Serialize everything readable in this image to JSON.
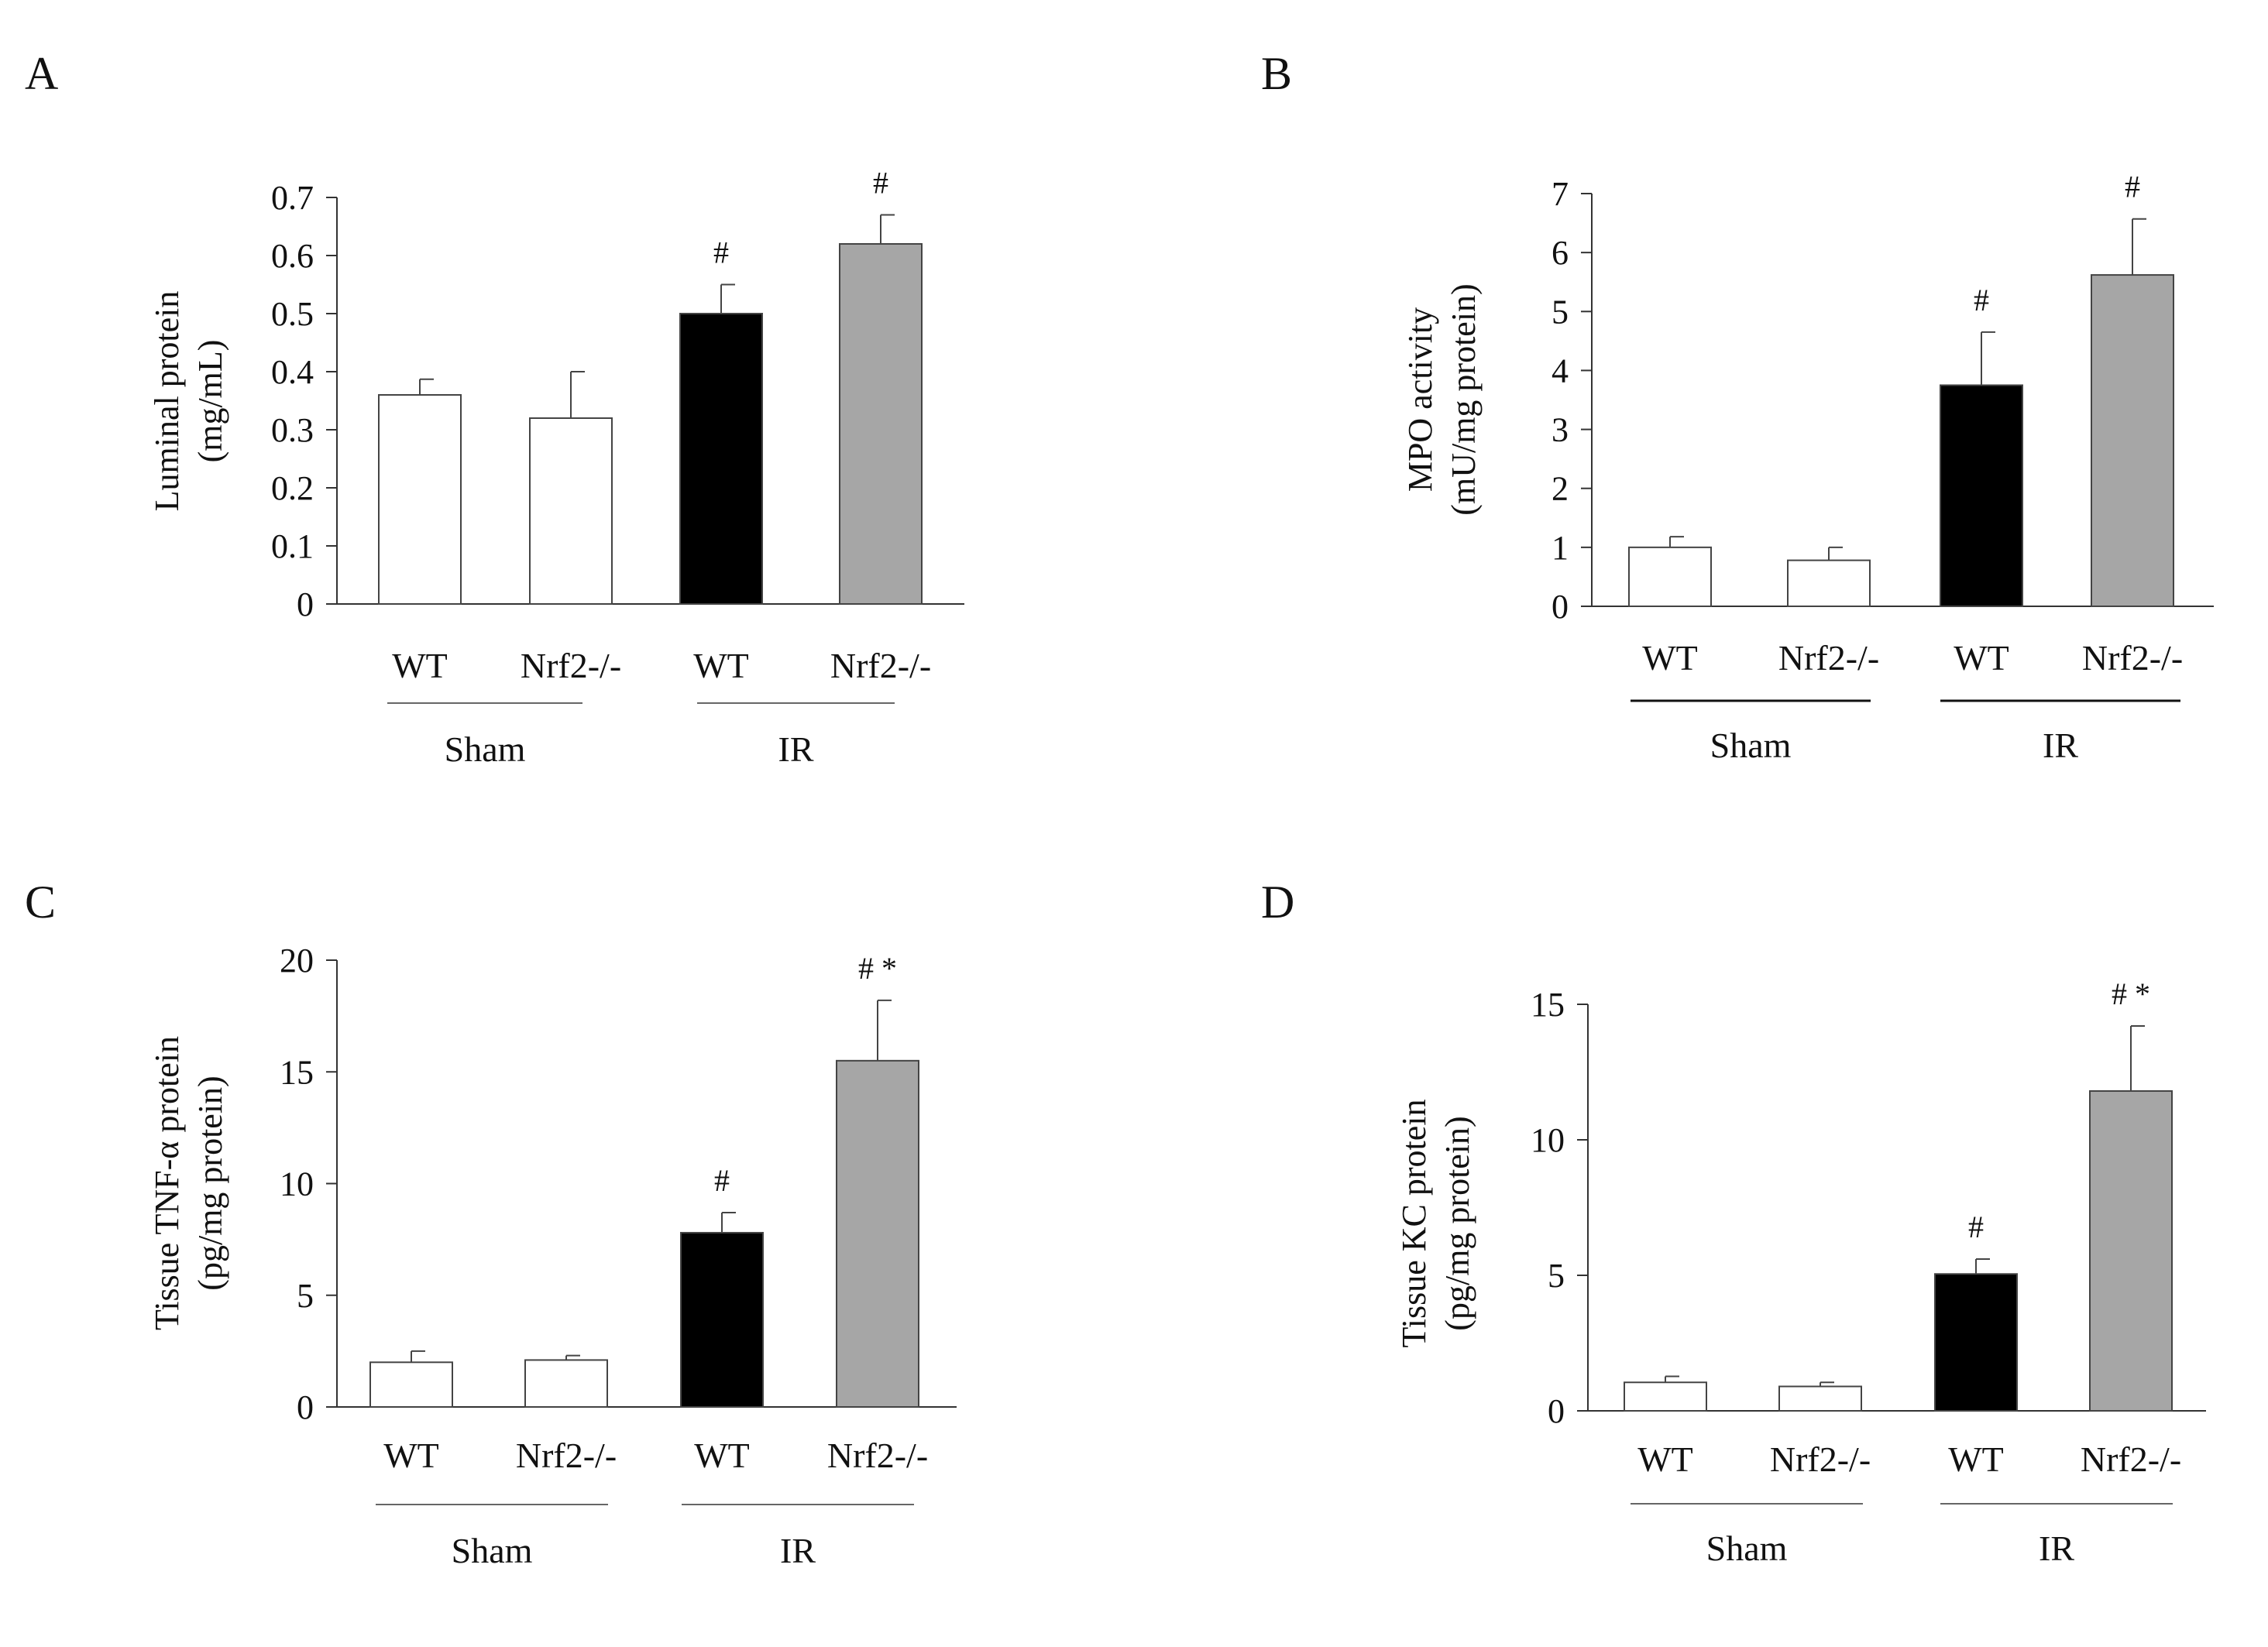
{
  "chart_data": [
    {
      "panel": "A",
      "type": "bar",
      "categories": [
        "WT",
        "Nrf2-/-",
        "WT",
        "Nrf2-/-"
      ],
      "groups": [
        {
          "label": "Sham",
          "categories": [
            0,
            1
          ]
        },
        {
          "label": "IR",
          "categories": [
            2,
            3
          ]
        }
      ],
      "values": [
        0.36,
        0.32,
        0.5,
        0.62
      ],
      "errors": [
        0.027,
        0.08,
        0.05,
        0.05
      ],
      "annotations": [
        "",
        "",
        "#",
        "#"
      ],
      "bar_colors": [
        "#ffffff",
        "#ffffff",
        "#000000",
        "#a6a6a6"
      ],
      "ylabel": [
        "Luminal protein",
        "(mg/mL)"
      ],
      "ylim": [
        0,
        0.7
      ],
      "yticks": [
        0,
        0.1,
        0.2,
        0.3,
        0.4,
        0.5,
        0.6,
        0.7
      ],
      "ytick_labels": [
        "0",
        "0.1",
        "0.2",
        "0.3",
        "0.4",
        "0.5",
        "0.6",
        "0.7"
      ]
    },
    {
      "panel": "B",
      "type": "bar",
      "categories": [
        "WT",
        "Nrf2-/-",
        "WT",
        "Nrf2-/-"
      ],
      "groups": [
        {
          "label": "Sham",
          "categories": [
            0,
            1
          ]
        },
        {
          "label": "IR",
          "categories": [
            2,
            3
          ]
        }
      ],
      "values": [
        1.0,
        0.78,
        3.75,
        5.62
      ],
      "errors": [
        0.18,
        0.22,
        0.9,
        0.95
      ],
      "annotations": [
        "",
        "",
        "#",
        "#"
      ],
      "bar_colors": [
        "#ffffff",
        "#ffffff",
        "#000000",
        "#a6a6a6"
      ],
      "ylabel": [
        "MPO activity",
        "(mU/mg protein)"
      ],
      "ylim": [
        0,
        7
      ],
      "yticks": [
        0,
        1,
        2,
        3,
        4,
        5,
        6,
        7
      ],
      "ytick_labels": [
        "0",
        "1",
        "2",
        "3",
        "4",
        "5",
        "6",
        "7"
      ]
    },
    {
      "panel": "C",
      "type": "bar",
      "categories": [
        "WT",
        "Nrf2-/-",
        "WT",
        "Nrf2-/-"
      ],
      "groups": [
        {
          "label": "Sham",
          "categories": [
            0,
            1
          ]
        },
        {
          "label": "IR",
          "categories": [
            2,
            3
          ]
        }
      ],
      "values": [
        2.0,
        2.1,
        7.8,
        15.5
      ],
      "errors": [
        0.5,
        0.2,
        0.9,
        2.7
      ],
      "annotations": [
        "",
        "",
        "#",
        "# *"
      ],
      "bar_colors": [
        "#ffffff",
        "#ffffff",
        "#000000",
        "#a6a6a6"
      ],
      "ylabel": [
        "Tissue TNF-α protein",
        "(pg/mg protein)"
      ],
      "ylim": [
        0,
        20
      ],
      "yticks": [
        0,
        5,
        10,
        15,
        20
      ],
      "ytick_labels": [
        "0",
        "5",
        "10",
        "15",
        "20"
      ]
    },
    {
      "panel": "D",
      "type": "bar",
      "categories": [
        "WT",
        "Nrf2-/-",
        "WT",
        "Nrf2-/-"
      ],
      "groups": [
        {
          "label": "Sham",
          "categories": [
            0,
            1
          ]
        },
        {
          "label": "IR",
          "categories": [
            2,
            3
          ]
        }
      ],
      "values": [
        1.05,
        0.9,
        5.05,
        11.8
      ],
      "errors": [
        0.22,
        0.15,
        0.55,
        2.4
      ],
      "annotations": [
        "",
        "",
        "#",
        "# *"
      ],
      "bar_colors": [
        "#ffffff",
        "#ffffff",
        "#000000",
        "#a6a6a6"
      ],
      "ylabel": [
        "Tissue KC protein",
        "(pg/mg protein)"
      ],
      "ylim": [
        0,
        15
      ],
      "yticks": [
        0,
        5,
        10,
        15
      ],
      "ytick_labels": [
        "0",
        "5",
        "10",
        "15"
      ]
    }
  ]
}
